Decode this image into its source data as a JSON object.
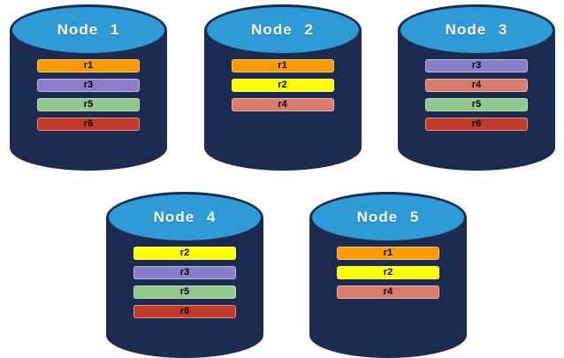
{
  "diagram": {
    "title": "database-nodes-replica-placement",
    "colors": {
      "cylinder_body": "#1C2B50",
      "cylinder_top_fill": "#2E9AD6",
      "cylinder_top_border": "#1C2B50",
      "title_text": "#FFFFFF",
      "bar_text": "#000000"
    },
    "replica_colors": {
      "r1": "#F79B00",
      "r2": "#FFFF00",
      "r3": "#8A7EC8",
      "r4": "#D97C6C",
      "r5": "#92C78B",
      "r6": "#C23A28"
    },
    "nodes": [
      {
        "title": "Node 1",
        "replicas": [
          "r1",
          "r3",
          "r5",
          "r6"
        ]
      },
      {
        "title": "Node 2",
        "replicas": [
          "r1",
          "r2",
          "r4"
        ]
      },
      {
        "title": "Node 3",
        "replicas": [
          "r3",
          "r4",
          "r5",
          "r6"
        ]
      },
      {
        "title": "Node 4",
        "replicas": [
          "r2",
          "r3",
          "r5",
          "r6"
        ]
      },
      {
        "title": "Node 5",
        "replicas": [
          "r1",
          "r2",
          "r4"
        ]
      }
    ],
    "rows": {
      "top_node_count": 3,
      "bottom_node_count": 2
    }
  }
}
